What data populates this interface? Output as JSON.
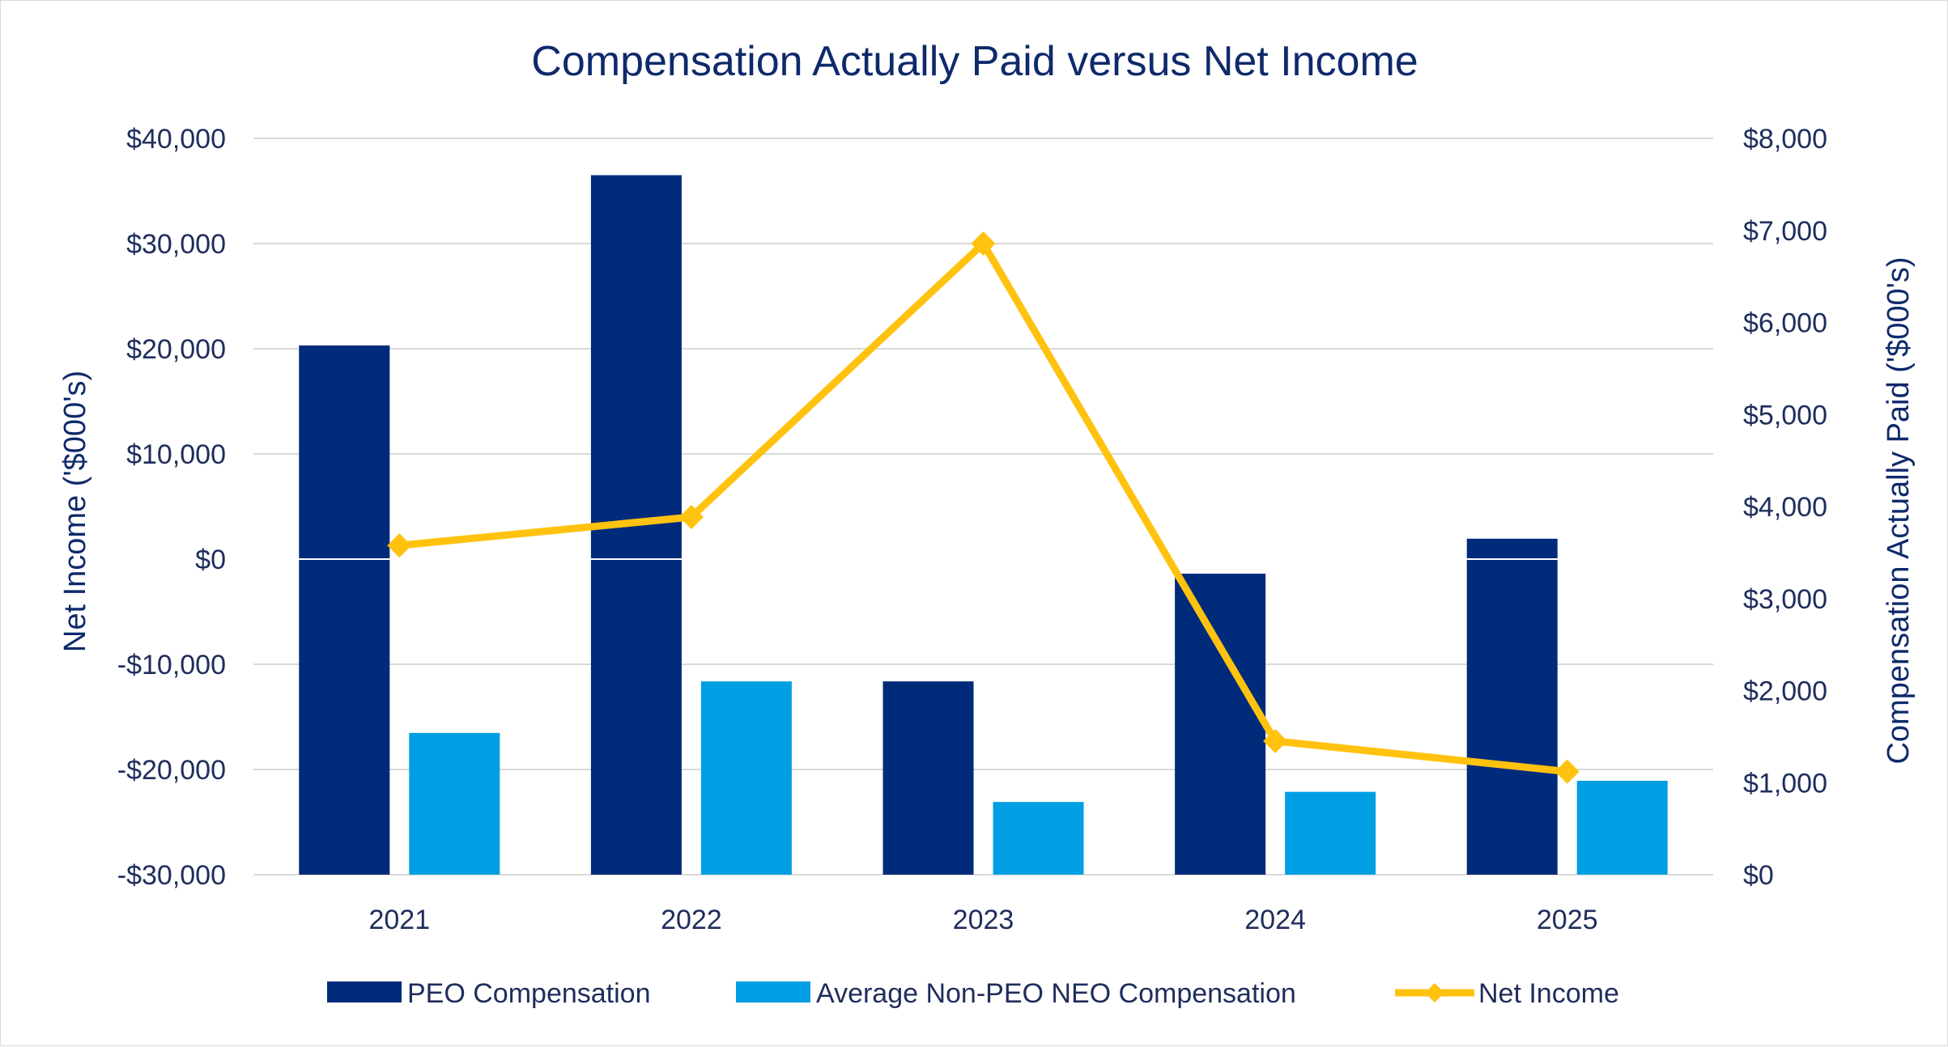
{
  "chart_data": {
    "type": "bar",
    "title": "Compensation Actually Paid versus Net Income",
    "categories": [
      "2021",
      "2022",
      "2023",
      "2024",
      "2025"
    ],
    "left_axis": {
      "label": "Net Income ('$000's)",
      "range": [
        -30000,
        40000
      ],
      "ticks": [
        40000,
        30000,
        20000,
        10000,
        0,
        -10000,
        -20000,
        -30000
      ],
      "tick_labels": [
        "$40,000",
        "$30,000",
        "$20,000",
        "$10,000",
        "$0",
        "-$10,000",
        "-$20,000",
        "-$30,000"
      ]
    },
    "right_axis": {
      "label": "Compensation Actually Paid ('$000's)",
      "range": [
        0,
        8000
      ],
      "ticks": [
        8000,
        7000,
        6000,
        5000,
        4000,
        3000,
        2000,
        1000,
        0
      ],
      "tick_labels": [
        "$8,000",
        "$7,000",
        "$6,000",
        "$5,000",
        "$4,000",
        "$3,000",
        "$2,000",
        "$1,000",
        "$0"
      ]
    },
    "series": [
      {
        "name": "PEO Compensation",
        "type": "bar",
        "axis": "right",
        "color": "#002b7a",
        "values": [
          5750,
          7600,
          2100,
          3270,
          3650
        ]
      },
      {
        "name": "Average Non-PEO NEO Compensation",
        "type": "bar",
        "axis": "right",
        "color": "#009fe3",
        "values": [
          1540,
          2100,
          790,
          900,
          1020
        ]
      },
      {
        "name": "Net Income",
        "type": "line",
        "axis": "left",
        "color": "#ffc20e",
        "marker": "diamond",
        "values": [
          1300,
          4000,
          30000,
          -17300,
          -20200
        ]
      }
    ],
    "grid": true,
    "legend_position": "bottom"
  }
}
